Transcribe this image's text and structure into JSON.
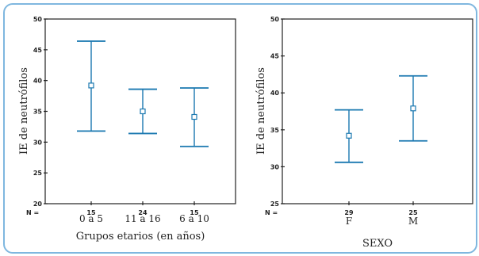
{
  "chart_data": [
    {
      "type": "errorbar",
      "xlabel": "Grupos etarios (en años)",
      "ylabel": "IE de neutrófilos",
      "ylim": [
        20,
        50
      ],
      "yticks": [
        20,
        25,
        30,
        35,
        40,
        45,
        50
      ],
      "n_label": "N =",
      "categories": [
        "0 a 5",
        "11 a 16",
        "6 a 10"
      ],
      "n": [
        "15",
        "24",
        "15"
      ],
      "mean": [
        39.2,
        35.0,
        34.1
      ],
      "lower": [
        31.8,
        31.4,
        29.3
      ],
      "upper": [
        46.4,
        38.6,
        38.8
      ],
      "color": "#1a78b0"
    },
    {
      "type": "errorbar",
      "xlabel": "SEXO",
      "ylabel": "IE de neutrófilos",
      "ylim": [
        25,
        50
      ],
      "yticks": [
        25,
        30,
        35,
        40,
        45,
        50
      ],
      "n_label": "N =",
      "categories": [
        "F",
        "M"
      ],
      "n": [
        "29",
        "25"
      ],
      "mean": [
        34.2,
        37.9
      ],
      "lower": [
        30.6,
        33.5
      ],
      "upper": [
        37.7,
        42.3
      ],
      "color": "#1a78b0"
    }
  ]
}
